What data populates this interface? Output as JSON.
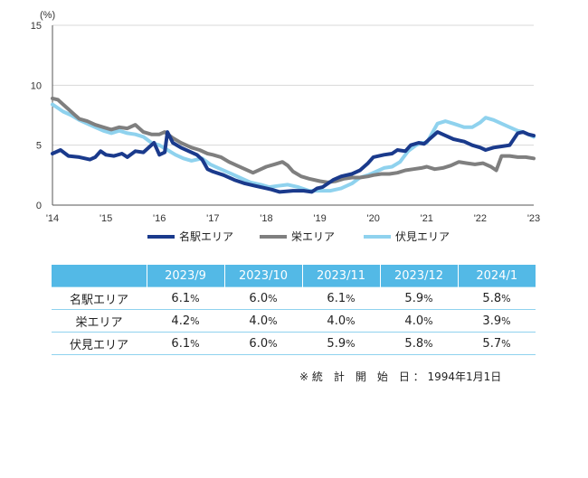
{
  "chart_data": {
    "type": "line",
    "unit_label": "(%)",
    "y_ticks": [
      "15",
      "10",
      "5",
      "0"
    ],
    "ylim": [
      0,
      15
    ],
    "x_ticks": [
      "'14",
      "'15",
      "'16",
      "'17",
      "'18",
      "'19",
      "'20",
      "'21",
      "'22",
      "'23"
    ],
    "xlim": [
      2014.0,
      2023.0
    ],
    "grid": "horizontal",
    "legend_position": "bottom",
    "series": [
      {
        "name": "名駅エリア",
        "color": "#1a3a8c",
        "points": [
          [
            2014.0,
            4.3
          ],
          [
            2014.15,
            4.6
          ],
          [
            2014.3,
            4.1
          ],
          [
            2014.5,
            4.0
          ],
          [
            2014.7,
            3.8
          ],
          [
            2014.8,
            4.0
          ],
          [
            2014.9,
            4.5
          ],
          [
            2015.0,
            4.2
          ],
          [
            2015.15,
            4.1
          ],
          [
            2015.3,
            4.3
          ],
          [
            2015.4,
            4.0
          ],
          [
            2015.55,
            4.5
          ],
          [
            2015.7,
            4.4
          ],
          [
            2015.8,
            4.8
          ],
          [
            2015.9,
            5.2
          ],
          [
            2016.0,
            4.2
          ],
          [
            2016.1,
            4.4
          ],
          [
            2016.15,
            6.1
          ],
          [
            2016.25,
            5.2
          ],
          [
            2016.4,
            4.8
          ],
          [
            2016.55,
            4.5
          ],
          [
            2016.7,
            4.2
          ],
          [
            2016.8,
            3.8
          ],
          [
            2016.9,
            3.0
          ],
          [
            2017.0,
            2.8
          ],
          [
            2017.2,
            2.5
          ],
          [
            2017.4,
            2.1
          ],
          [
            2017.6,
            1.8
          ],
          [
            2017.8,
            1.6
          ],
          [
            2018.0,
            1.4
          ],
          [
            2018.1,
            1.3
          ],
          [
            2018.25,
            1.1
          ],
          [
            2018.5,
            1.2
          ],
          [
            2018.7,
            1.2
          ],
          [
            2018.85,
            1.1
          ],
          [
            2018.95,
            1.4
          ],
          [
            2019.05,
            1.5
          ],
          [
            2019.15,
            1.8
          ],
          [
            2019.25,
            2.1
          ],
          [
            2019.4,
            2.4
          ],
          [
            2019.6,
            2.6
          ],
          [
            2019.75,
            2.9
          ],
          [
            2019.9,
            3.5
          ],
          [
            2020.0,
            4.0
          ],
          [
            2020.2,
            4.2
          ],
          [
            2020.35,
            4.3
          ],
          [
            2020.45,
            4.6
          ],
          [
            2020.6,
            4.5
          ],
          [
            2020.7,
            5.0
          ],
          [
            2020.85,
            5.2
          ],
          [
            2020.95,
            5.1
          ],
          [
            2021.05,
            5.5
          ],
          [
            2021.2,
            6.1
          ],
          [
            2021.35,
            5.8
          ],
          [
            2021.5,
            5.5
          ],
          [
            2021.7,
            5.3
          ],
          [
            2021.85,
            5.0
          ],
          [
            2022.0,
            4.8
          ],
          [
            2022.1,
            4.6
          ],
          [
            2022.25,
            4.8
          ],
          [
            2022.4,
            4.9
          ],
          [
            2022.55,
            5.0
          ],
          [
            2022.7,
            6.0
          ],
          [
            2022.8,
            6.1
          ],
          [
            2022.9,
            5.9
          ],
          [
            2023.0,
            5.8
          ]
        ]
      },
      {
        "name": "栄エリア",
        "color": "#7f7f7f",
        "points": [
          [
            2014.0,
            8.9
          ],
          [
            2014.1,
            8.8
          ],
          [
            2014.2,
            8.4
          ],
          [
            2014.3,
            8.0
          ],
          [
            2014.4,
            7.6
          ],
          [
            2014.5,
            7.2
          ],
          [
            2014.65,
            7.0
          ],
          [
            2014.8,
            6.7
          ],
          [
            2014.95,
            6.5
          ],
          [
            2015.1,
            6.3
          ],
          [
            2015.25,
            6.5
          ],
          [
            2015.4,
            6.4
          ],
          [
            2015.55,
            6.7
          ],
          [
            2015.7,
            6.1
          ],
          [
            2015.85,
            5.9
          ],
          [
            2016.0,
            5.9
          ],
          [
            2016.1,
            6.1
          ],
          [
            2016.25,
            5.6
          ],
          [
            2016.4,
            5.2
          ],
          [
            2016.6,
            4.8
          ],
          [
            2016.75,
            4.6
          ],
          [
            2016.9,
            4.3
          ],
          [
            2017.0,
            4.2
          ],
          [
            2017.15,
            4.0
          ],
          [
            2017.3,
            3.6
          ],
          [
            2017.45,
            3.3
          ],
          [
            2017.6,
            3.0
          ],
          [
            2017.75,
            2.7
          ],
          [
            2017.9,
            3.0
          ],
          [
            2018.0,
            3.2
          ],
          [
            2018.15,
            3.4
          ],
          [
            2018.3,
            3.6
          ],
          [
            2018.4,
            3.3
          ],
          [
            2018.5,
            2.8
          ],
          [
            2018.65,
            2.4
          ],
          [
            2018.8,
            2.2
          ],
          [
            2019.0,
            2.0
          ],
          [
            2019.15,
            1.9
          ],
          [
            2019.3,
            2.0
          ],
          [
            2019.45,
            2.2
          ],
          [
            2019.6,
            2.3
          ],
          [
            2019.75,
            2.3
          ],
          [
            2019.9,
            2.4
          ],
          [
            2020.0,
            2.5
          ],
          [
            2020.15,
            2.6
          ],
          [
            2020.3,
            2.6
          ],
          [
            2020.45,
            2.7
          ],
          [
            2020.6,
            2.9
          ],
          [
            2020.75,
            3.0
          ],
          [
            2020.9,
            3.1
          ],
          [
            2021.0,
            3.2
          ],
          [
            2021.15,
            3.0
          ],
          [
            2021.3,
            3.1
          ],
          [
            2021.45,
            3.3
          ],
          [
            2021.6,
            3.6
          ],
          [
            2021.75,
            3.5
          ],
          [
            2021.9,
            3.4
          ],
          [
            2022.05,
            3.5
          ],
          [
            2022.2,
            3.2
          ],
          [
            2022.3,
            2.9
          ],
          [
            2022.4,
            4.1
          ],
          [
            2022.55,
            4.1
          ],
          [
            2022.7,
            4.0
          ],
          [
            2022.85,
            4.0
          ],
          [
            2023.0,
            3.9
          ]
        ]
      },
      {
        "name": "伏見エリア",
        "color": "#8fd2ee",
        "points": [
          [
            2014.0,
            8.4
          ],
          [
            2014.1,
            8.1
          ],
          [
            2014.2,
            7.8
          ],
          [
            2014.35,
            7.5
          ],
          [
            2014.5,
            7.1
          ],
          [
            2014.65,
            6.8
          ],
          [
            2014.8,
            6.5
          ],
          [
            2014.95,
            6.2
          ],
          [
            2015.1,
            6.0
          ],
          [
            2015.25,
            6.2
          ],
          [
            2015.4,
            6.0
          ],
          [
            2015.55,
            5.9
          ],
          [
            2015.7,
            5.7
          ],
          [
            2015.85,
            5.2
          ],
          [
            2016.0,
            5.0
          ],
          [
            2016.15,
            4.6
          ],
          [
            2016.3,
            4.2
          ],
          [
            2016.45,
            3.9
          ],
          [
            2016.6,
            3.7
          ],
          [
            2016.8,
            3.9
          ],
          [
            2016.95,
            3.4
          ],
          [
            2017.1,
            3.1
          ],
          [
            2017.3,
            2.7
          ],
          [
            2017.5,
            2.3
          ],
          [
            2017.7,
            1.9
          ],
          [
            2017.9,
            1.7
          ],
          [
            2018.05,
            1.5
          ],
          [
            2018.2,
            1.6
          ],
          [
            2018.4,
            1.7
          ],
          [
            2018.6,
            1.5
          ],
          [
            2018.8,
            1.2
          ],
          [
            2019.0,
            1.2
          ],
          [
            2019.2,
            1.2
          ],
          [
            2019.4,
            1.4
          ],
          [
            2019.6,
            1.8
          ],
          [
            2019.75,
            2.3
          ],
          [
            2019.9,
            2.5
          ],
          [
            2020.05,
            2.8
          ],
          [
            2020.2,
            3.1
          ],
          [
            2020.35,
            3.2
          ],
          [
            2020.5,
            3.6
          ],
          [
            2020.65,
            4.5
          ],
          [
            2020.8,
            5.0
          ],
          [
            2020.9,
            5.2
          ],
          [
            2021.0,
            5.2
          ],
          [
            2021.1,
            6.0
          ],
          [
            2021.2,
            6.8
          ],
          [
            2021.35,
            7.0
          ],
          [
            2021.5,
            6.8
          ],
          [
            2021.7,
            6.5
          ],
          [
            2021.85,
            6.5
          ],
          [
            2022.0,
            6.9
          ],
          [
            2022.1,
            7.3
          ],
          [
            2022.25,
            7.1
          ],
          [
            2022.4,
            6.8
          ],
          [
            2022.55,
            6.5
          ],
          [
            2022.7,
            6.2
          ],
          [
            2022.8,
            6.1
          ],
          [
            2022.9,
            5.9
          ],
          [
            2023.0,
            5.7
          ]
        ]
      }
    ]
  },
  "table": {
    "columns": [
      "2023/9",
      "2023/10",
      "2023/11",
      "2023/12",
      "2024/1"
    ],
    "rows": [
      {
        "label": "名駅エリア",
        "values": [
          "6.1",
          "6.0",
          "6.1",
          "5.9",
          "5.8"
        ]
      },
      {
        "label": "栄エリア",
        "values": [
          "4.2",
          "4.0",
          "4.0",
          "4.0",
          "3.9"
        ]
      },
      {
        "label": "伏見エリア",
        "values": [
          "6.1",
          "6.0",
          "5.9",
          "5.8",
          "5.7"
        ]
      }
    ],
    "percent_sign": "%"
  },
  "footnote": "※ 統　計　開　始　日 ： 1994年1月1日"
}
